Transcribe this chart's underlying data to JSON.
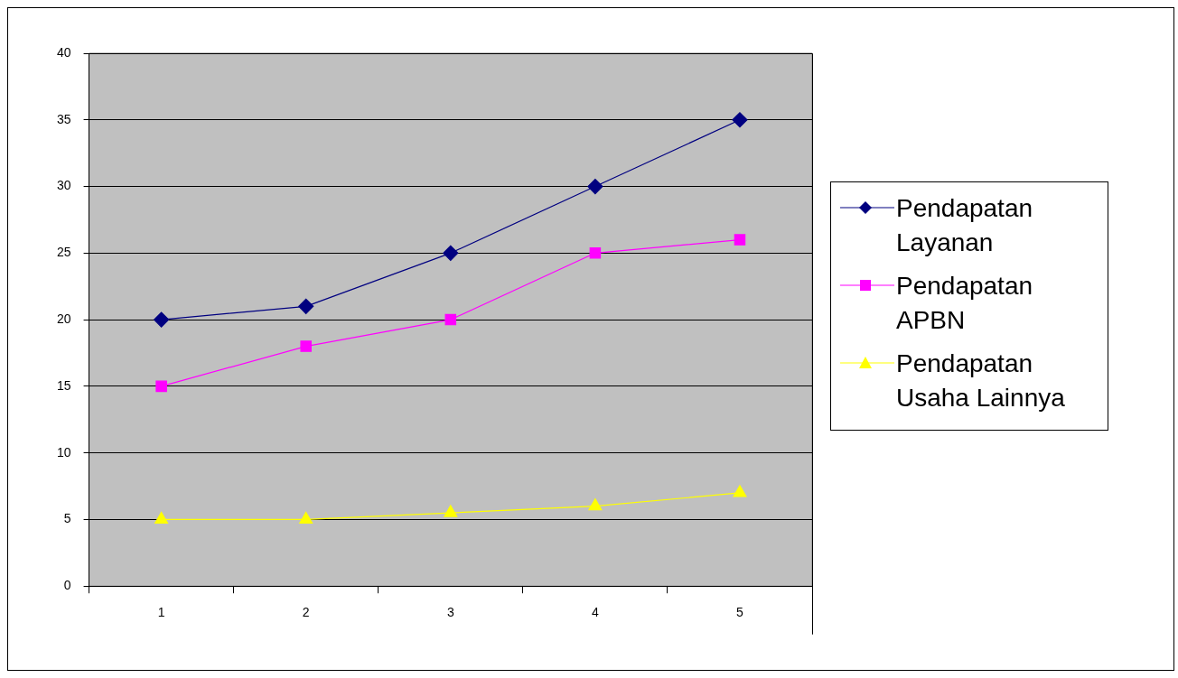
{
  "chart_data": {
    "type": "line",
    "categories": [
      "1",
      "2",
      "3",
      "4",
      "5"
    ],
    "series": [
      {
        "name": "Pendapatan Layanan",
        "color": "#000080",
        "marker": "diamond",
        "values": [
          20,
          21,
          25,
          30,
          35
        ]
      },
      {
        "name": "Pendapatan APBN",
        "color": "#ff00ff",
        "marker": "square",
        "values": [
          15,
          18,
          20,
          25,
          26
        ]
      },
      {
        "name": "Pendapatan Usaha Lainnya",
        "color": "#ffff00",
        "marker": "triangle",
        "values": [
          5,
          5,
          5.5,
          6,
          7
        ]
      }
    ],
    "ylim": [
      0,
      40
    ],
    "yticks": [
      0,
      5,
      10,
      15,
      20,
      25,
      30,
      35,
      40
    ],
    "grid": "y",
    "legend": "right",
    "line_style": "solid"
  }
}
